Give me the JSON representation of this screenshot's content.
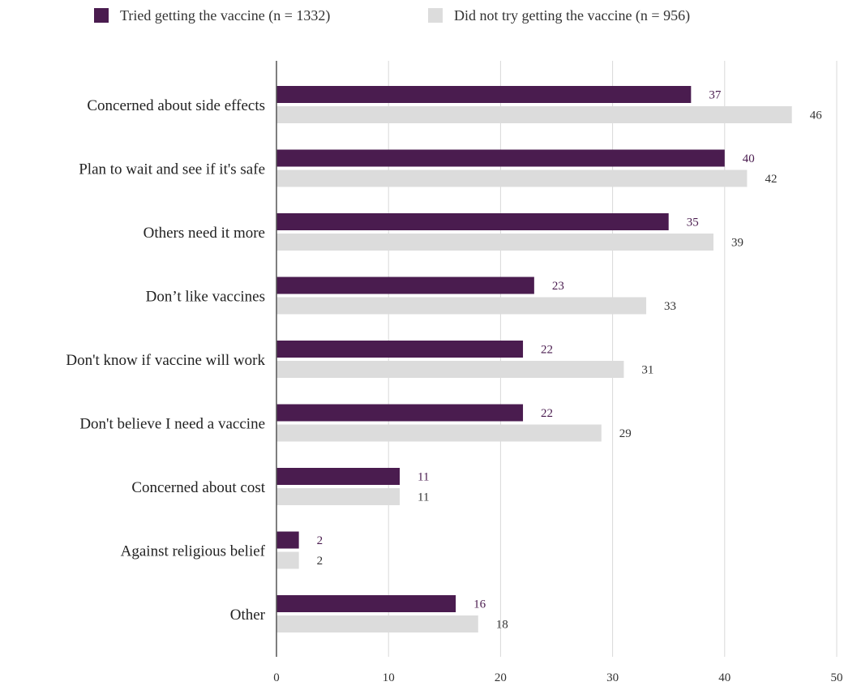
{
  "chart_data": {
    "type": "bar",
    "orientation": "horizontal",
    "categories": [
      "Concerned about side effects",
      "Plan to wait and see if it's safe",
      "Others need it more",
      "Don’t like vaccines",
      "Don't know if vaccine will work",
      "Don't believe I need a vaccine",
      "Concerned about cost",
      "Against religious belief",
      "Other"
    ],
    "series": [
      {
        "name": "Tried getting the vaccine (n = 1332)",
        "color": "#4a1c4f",
        "label_color": "#4a1c4f",
        "values": [
          37,
          40,
          35,
          23,
          22,
          22,
          11,
          2,
          16
        ]
      },
      {
        "name": "Did not try getting the vaccine (n = 956)",
        "color": "#dcdcdc",
        "label_color": "#333333",
        "values": [
          46,
          42,
          39,
          33,
          31,
          29,
          11,
          2,
          18
        ]
      }
    ],
    "xlim": [
      0,
      50
    ],
    "xticks": [
      0,
      10,
      20,
      30,
      40,
      50
    ],
    "grid": true,
    "legend_position": "top-center",
    "title": "",
    "xlabel": "",
    "ylabel": ""
  }
}
